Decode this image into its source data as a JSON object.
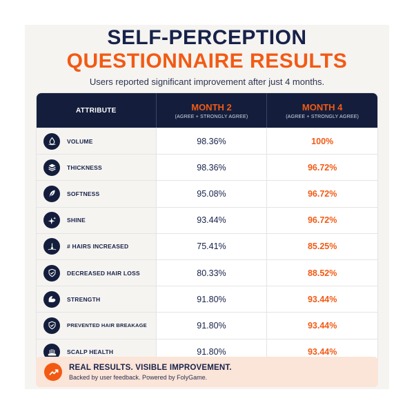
{
  "header": {
    "title_line1": "SELF-PERCEPTION",
    "title_line2": "QUESTIONNAIRE RESULTS",
    "subtitle": "Users reported significant improvement after just 4 months."
  },
  "table": {
    "col_attribute": "ATTRIBUTE",
    "col_month2": "MONTH 2",
    "col_month2_sub": "(AGREE + STRONGLY AGREE)",
    "col_month4": "MONTH 4",
    "col_month4_sub": "(AGREE + STRONGLY AGREE)",
    "rows": [
      {
        "attribute": "VOLUME",
        "icon": "droplet-icon",
        "month2": "98.36%",
        "month4": "100%"
      },
      {
        "attribute": "THICKNESS",
        "icon": "layers-icon",
        "month2": "98.36%",
        "month4": "96.72%"
      },
      {
        "attribute": "SOFTNESS",
        "icon": "feather-icon",
        "month2": "95.08%",
        "month4": "96.72%"
      },
      {
        "attribute": "SHINE",
        "icon": "sparkle-icon",
        "month2": "93.44%",
        "month4": "96.72%"
      },
      {
        "attribute": "# HAIRS INCREASED",
        "icon": "hair-follicle-icon",
        "month2": "75.41%",
        "month4": "85.25%"
      },
      {
        "attribute": "DECREASED HAIR LOSS",
        "icon": "shield-check-icon",
        "month2": "80.33%",
        "month4": "88.52%"
      },
      {
        "attribute": "STRENGTH",
        "icon": "flexed-arm-icon",
        "month2": "91.80%",
        "month4": "93.44%"
      },
      {
        "attribute": "PREVENTED HAIR BREAKAGE",
        "icon": "shield-check-icon",
        "month2": "91.80%",
        "month4": "93.44%"
      },
      {
        "attribute": "SCALP HEALTH",
        "icon": "scalp-icon",
        "month2": "91.80%",
        "month4": "93.44%"
      }
    ]
  },
  "banner": {
    "title": "REAL RESULTS. VISIBLE IMPROVEMENT.",
    "subtitle": "Backed by user feedback. Powered by FolyGame.",
    "icon": "trending-up-icon"
  },
  "colors": {
    "navy": "#141e3c",
    "accent_orange": "#f25a14",
    "banner_bg": "#fbe4d8"
  }
}
